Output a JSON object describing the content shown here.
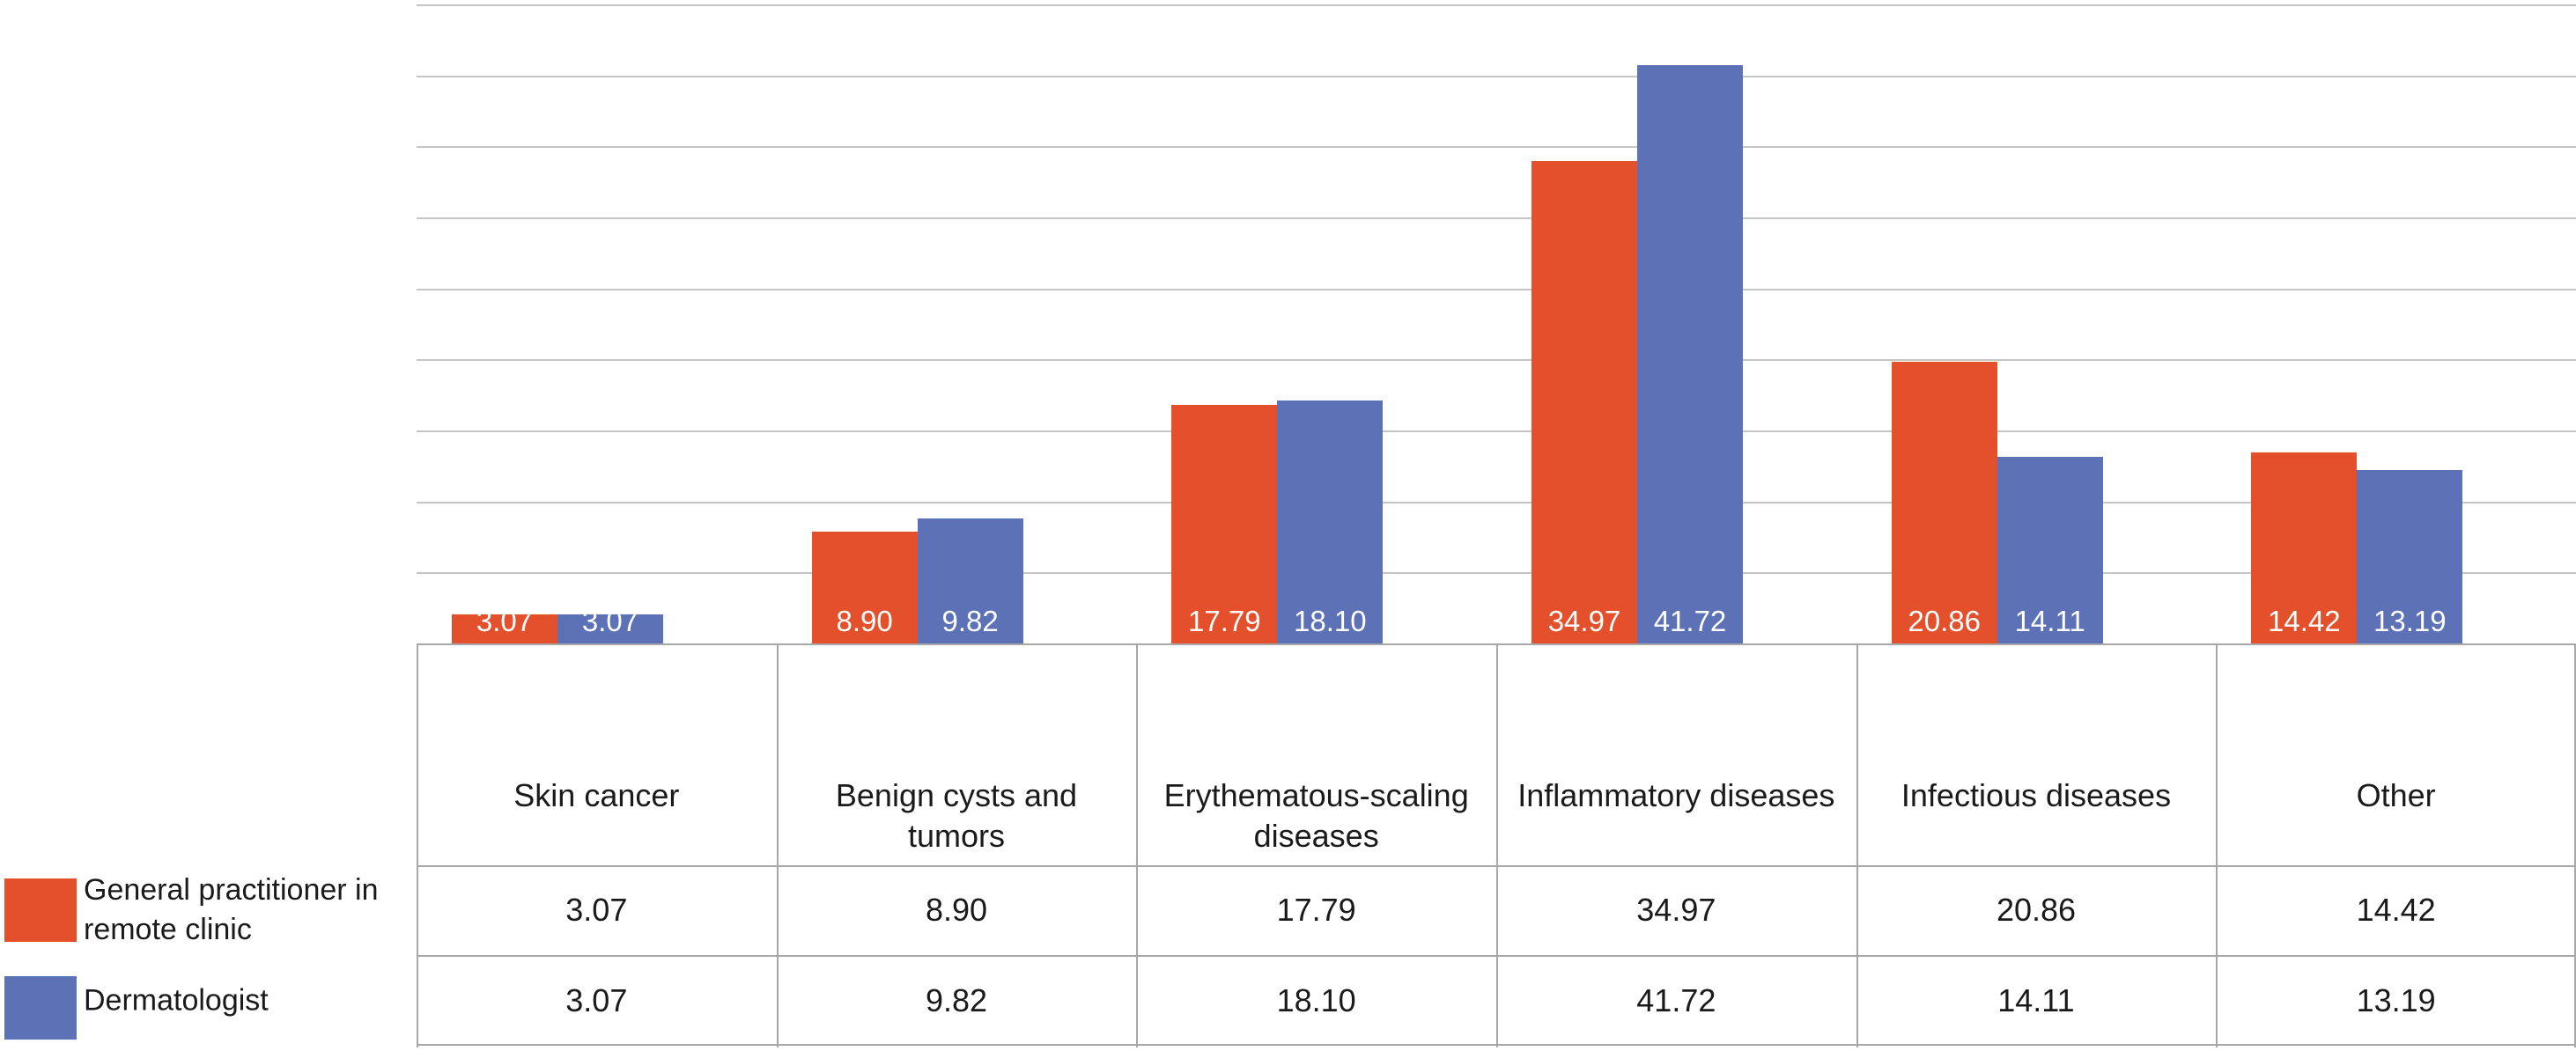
{
  "chart_data": {
    "type": "bar",
    "title": "",
    "categories": [
      "Skin cancer",
      "Benign cysts and tumors",
      "Erythematous-scaling diseases",
      "Inflammatory diseases",
      "Infectious diseases",
      "Other"
    ],
    "series": [
      {
        "name": "General practitioner in remote clinic",
        "color": "#E4502B",
        "values": [
          3.07,
          8.9,
          17.79,
          34.97,
          20.86,
          14.42
        ]
      },
      {
        "name": "Dermatologist",
        "color": "#5D71B6",
        "values": [
          3.07,
          9.82,
          18.1,
          41.72,
          14.11,
          13.19
        ]
      }
    ],
    "value_labels": {
      "visible": true,
      "position": "inside-base",
      "color": "#FFFFFF",
      "decimals": 2
    },
    "axis": {
      "ymin": 1,
      "ymax": 46,
      "gridline_count": 10,
      "gridline_step_units": 5,
      "y_tick_labels_visible": false,
      "grid": true
    },
    "legend_position": "bottom-left",
    "data_table_below_chart": true,
    "xlabel": "",
    "ylabel": ""
  },
  "colors": {
    "background": "#FFFFFF",
    "gridline": "#C5C5C5",
    "table_border": "#A8A8A8",
    "text": "#1A1A1A",
    "bar_label_text": "#FFFFFF"
  }
}
